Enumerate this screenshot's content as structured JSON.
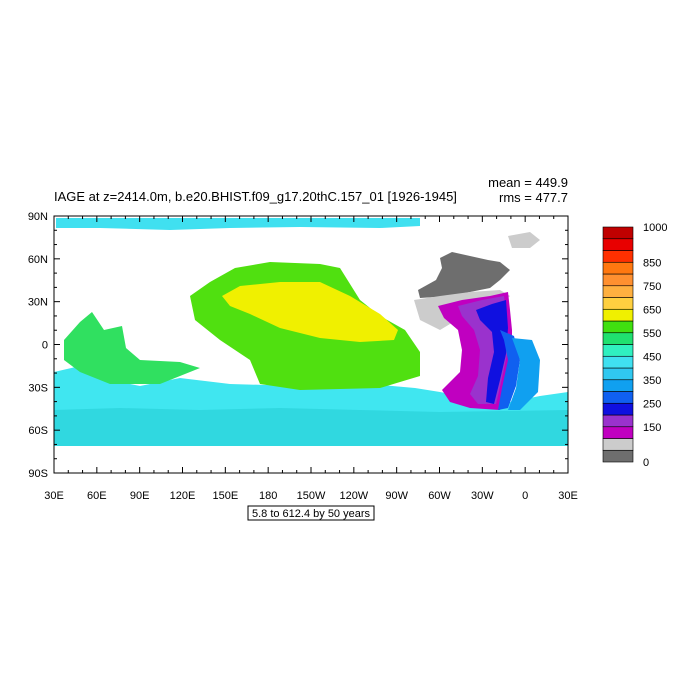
{
  "title": "IAGE at z=2414.0m, b.e20.BHIST.f09_g17.20thC.157_01 [1926-1945]",
  "stats": {
    "mean": "mean = 449.9",
    "rms": "rms = 477.7"
  },
  "contour_note": "5.8 to 612.4 by 50 years",
  "axes": {
    "lon_ticks": [
      "30E",
      "60E",
      "90E",
      "120E",
      "150E",
      "180",
      "150W",
      "120W",
      "90W",
      "60W",
      "30W",
      "0",
      "30E"
    ],
    "lat_ticks": [
      "90N",
      "60N",
      "30N",
      "0",
      "30S",
      "60S",
      "90S"
    ]
  },
  "colorbar": {
    "labels": [
      {
        "value": "1000",
        "level": 1000
      },
      {
        "value": "850",
        "level": 850
      },
      {
        "value": "750",
        "level": 750
      },
      {
        "value": "650",
        "level": 650
      },
      {
        "value": "550",
        "level": 550
      },
      {
        "value": "450",
        "level": 450
      },
      {
        "value": "350",
        "level": 350
      },
      {
        "value": "250",
        "level": 250
      },
      {
        "value": "150",
        "level": 150
      },
      {
        "value": "0",
        "level": 0
      }
    ],
    "colors": [
      "#6e6e6e",
      "#cccccc",
      "#c000c0",
      "#9a32cd",
      "#1010e0",
      "#1060f0",
      "#10a0f0",
      "#30c8f0",
      "#40e0f0",
      "#30f0c0",
      "#20e070",
      "#40e010",
      "#f0f000",
      "#ffd040",
      "#ffb040",
      "#ff9030",
      "#ff7810",
      "#ff3000",
      "#e80000",
      "#c00000"
    ]
  },
  "fields": {
    "pacific_core": "#f0f000",
    "pacific_green": "#50e010",
    "pacific_light_green": "#30e060",
    "southern_cyan": "#40e6f0",
    "southern_teal": "#30d8e0",
    "arctic": "#40e0f0",
    "atlantic_gray": "#6e6e6e",
    "atlantic_light_gray": "#cccccc",
    "atlantic_magenta": "#c000c0",
    "atlantic_purple": "#9a32cd",
    "atlantic_blue": "#1010e0",
    "atlantic_mid_blue": "#1060f0",
    "atlantic_sky": "#10a0f0"
  }
}
